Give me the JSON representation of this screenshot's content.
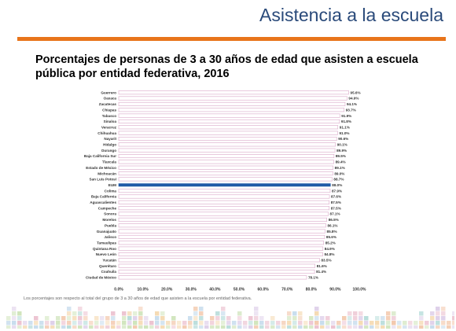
{
  "slide": {
    "title": "Asistencia a la escuela",
    "chart_title": "Porcentajes de personas de 3 a 30 años de edad que asisten a escuela pública por entidad federativa, 2016",
    "note": "Los porcentajes son respecto al total del grupo de 3 a 30 años de edad que asisten a la escuela por entidad federativa.",
    "colors": {
      "accent": "#e8741a",
      "title": "#2a4a7a",
      "bar": "#ffffff",
      "bar_stroke": "#d9a6c7",
      "highlight": "#1f5aa6"
    }
  },
  "chart_data": {
    "type": "bar",
    "orientation": "horizontal",
    "title": "Porcentajes de personas de 3 a 30 años de edad que asisten a escuela pública por entidad federativa, 2016",
    "categories": [
      "Guerrero",
      "Oaxaca",
      "Zacatecas",
      "Chiapas",
      "Tabasco",
      "Sinaloa",
      "Veracruz",
      "Chihuahua",
      "Nayarit",
      "Hidalgo",
      "Durango",
      "Baja California Sur",
      "Tlaxcala",
      "Estado de México",
      "Michoacán",
      "San Luis Potosí",
      "EUM",
      "Colima",
      "Baja California",
      "Aguascalientes",
      "Campeche",
      "Sonora",
      "Morelos",
      "Puebla",
      "Guanajuato",
      "Jalisco",
      "Tamaulipas",
      "Quintana Roo",
      "Nuevo León",
      "Yucatán",
      "Querétaro",
      "Coahuila",
      "Ciudad de México"
    ],
    "values": [
      95.6,
      94.9,
      94.1,
      93.7,
      91.9,
      91.8,
      91.1,
      91.0,
      90.6,
      90.1,
      89.9,
      89.5,
      89.4,
      89.1,
      89.0,
      88.7,
      88.0,
      87.9,
      87.6,
      87.5,
      87.5,
      87.1,
      86.5,
      86.1,
      85.8,
      85.6,
      85.2,
      84.9,
      84.8,
      83.5,
      81.6,
      81.4,
      78.1
    ],
    "value_labels": [
      "95.6%",
      "94.9%",
      "94.1%",
      "93.7%",
      "91.9%",
      "91.8%",
      "91.1%",
      "91.0%",
      "90.6%",
      "90.1%",
      "89.9%",
      "89.5%",
      "89.4%",
      "89.1%",
      "89.0%",
      "88.7%",
      "88.0%",
      "87.9%",
      "87.6%",
      "87.5%",
      "87.5%",
      "87.1%",
      "86.5%",
      "86.1%",
      "85.8%",
      "85.6%",
      "85.2%",
      "84.9%",
      "84.8%",
      "83.5%",
      "81.6%",
      "81.4%",
      "78.1%"
    ],
    "highlight_category": "EUM",
    "xlim": [
      0,
      100
    ],
    "x_ticks": [
      0,
      10,
      20,
      30,
      40,
      50,
      60,
      70,
      80,
      90,
      100
    ],
    "x_tick_labels": [
      "0.0%",
      "10.0%",
      "20.0%",
      "30.0%",
      "40.0%",
      "50.0%",
      "60.0%",
      "70.0%",
      "80.0%",
      "90.0%",
      "100.0%"
    ],
    "grid": false,
    "legend": "none"
  }
}
